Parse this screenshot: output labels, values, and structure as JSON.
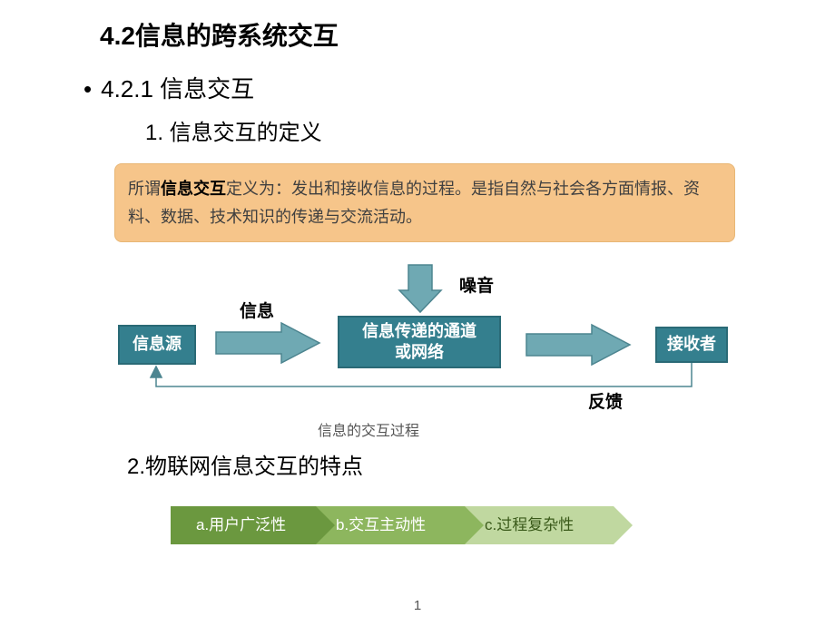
{
  "title": "4.2信息的跨系统交互",
  "section_421": "4.2.1 信息交互",
  "sub1": "1. 信息交互的定义",
  "callout": {
    "pre": "所谓",
    "bold": "信息交互",
    "post": "定义为：发出和接收信息的过程。是指自然与社会各方面情报、资料、数据、技术知识的传递与交流活动。",
    "bg": "#f6c58a",
    "border": "#e8b776"
  },
  "diagram": {
    "nodes": {
      "source": "信息源",
      "channel": "信息传递的通道\n或网络",
      "receiver": "接收者",
      "fill": "#347f8e",
      "border": "#2a6a76"
    },
    "labels": {
      "info": "信息",
      "noise": "噪音",
      "feedback": "反馈"
    },
    "caption": "信息的交互过程",
    "arrow_fill": "#6fa9b3",
    "arrow_border": "#4d8590",
    "feedback_line": "#4d8590"
  },
  "sub2": "2.物联网信息交互的特点",
  "chevrons": {
    "a": {
      "label": "a.用户广泛性",
      "color": "#6b983f"
    },
    "b": {
      "label": "b.交互主动性",
      "color": "#8db65e"
    },
    "c": {
      "label": "c.过程复杂性",
      "color": "#c0d8a0"
    }
  },
  "page_number": "1"
}
